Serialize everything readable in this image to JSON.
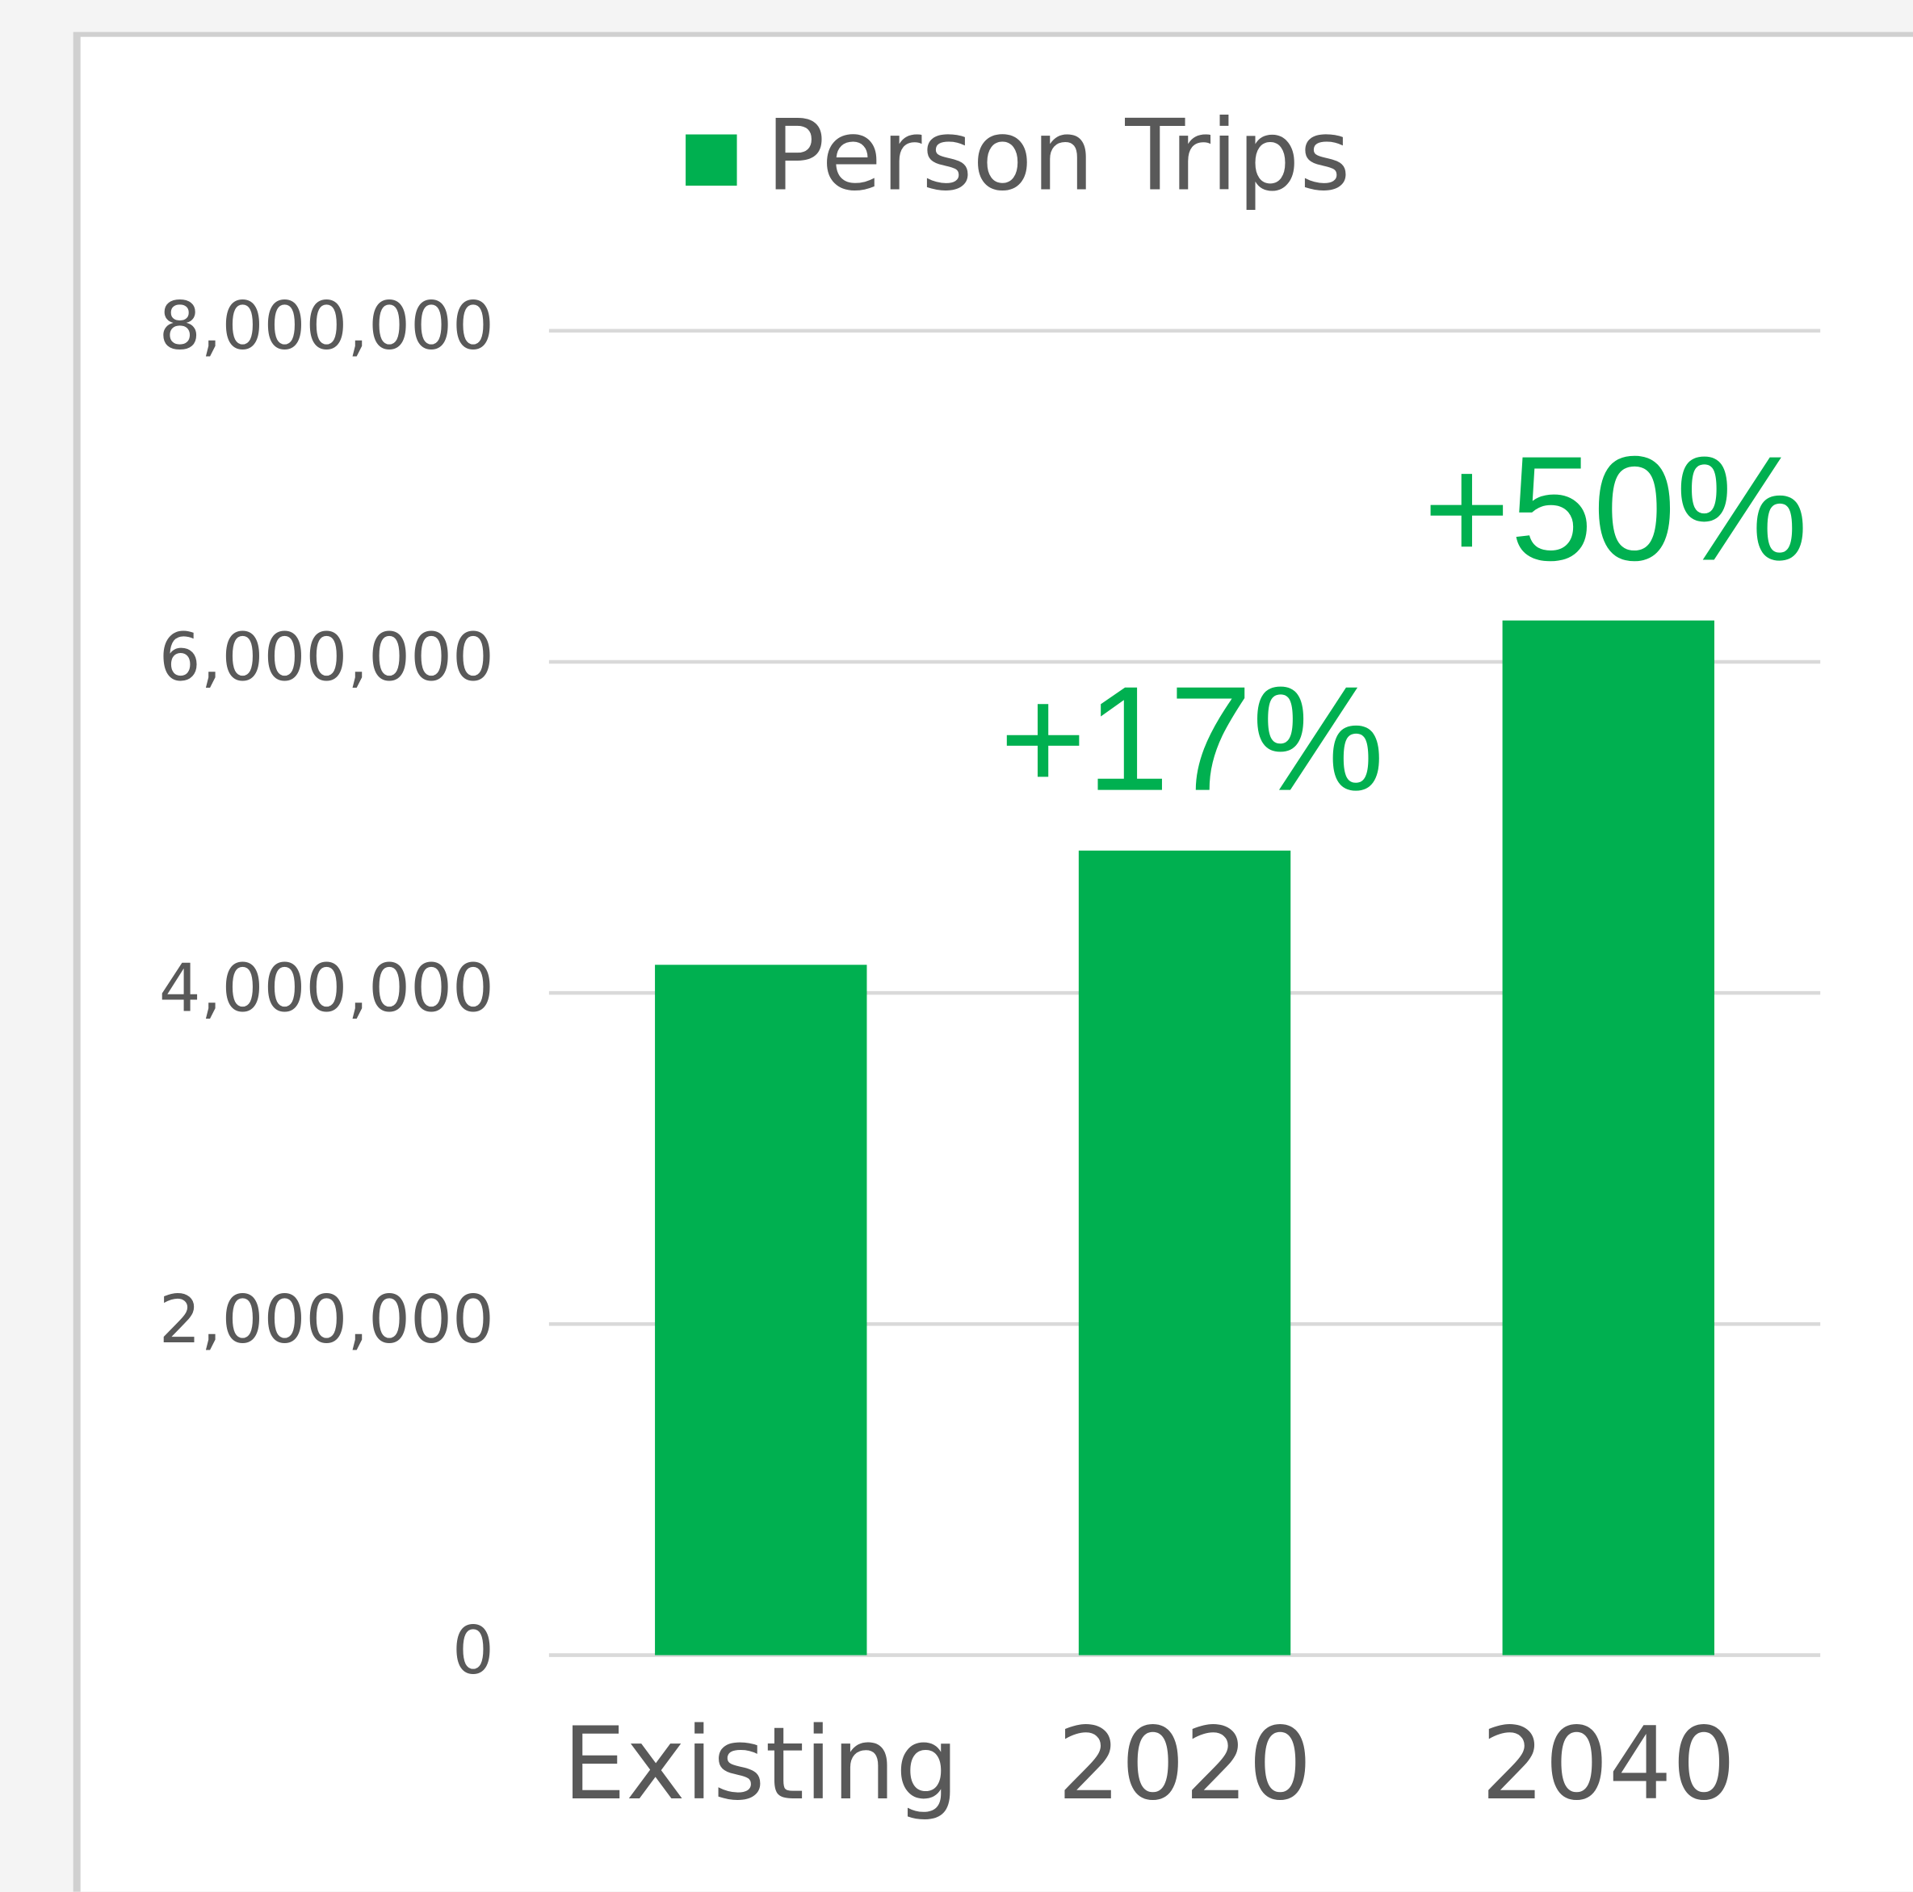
{
  "chart_data": {
    "type": "bar",
    "legend": "Person Trips",
    "categories": [
      "Existing",
      "2020",
      "2040"
    ],
    "series": [
      {
        "name": "Person Trips",
        "color": "#00b050",
        "values": [
          4170000,
          4860000,
          6250000
        ]
      }
    ],
    "annotations": [
      "+17%",
      "+50%"
    ],
    "ylim": [
      0,
      8000000
    ],
    "yticks": [
      0,
      {
        "value": 2000000,
        "label": "2,000,000"
      },
      {
        "value": 4000000,
        "label": "4,000,000"
      },
      {
        "value": 6000000,
        "label": "6,000,000"
      },
      {
        "value": 8000000,
        "label": "8,000,000"
      }
    ],
    "grid": true
  }
}
